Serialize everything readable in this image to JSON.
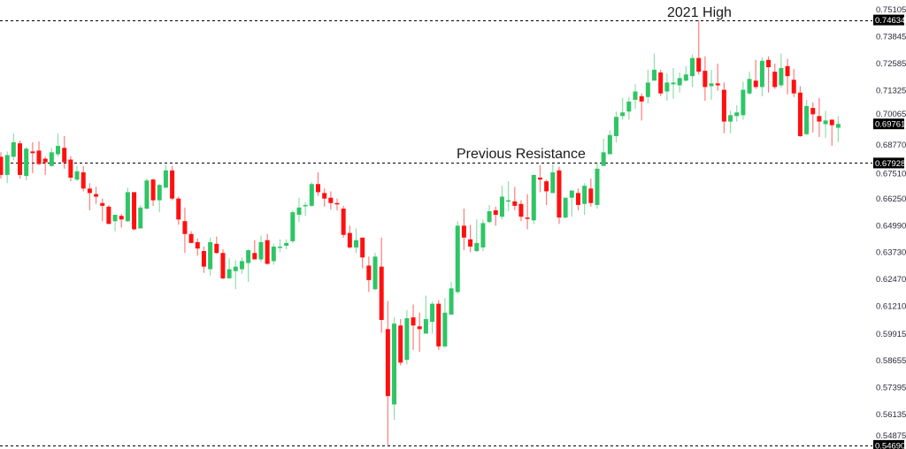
{
  "chart_data": {
    "type": "candlestick",
    "title": "",
    "xlabel": "",
    "ylabel": "",
    "ylim": [
      0.5452,
      0.7557
    ],
    "grid": false,
    "colors": {
      "up": "#2fc565",
      "down": "#ff1010",
      "level": "#000000",
      "label_bg": "#000000"
    },
    "y_ticks": [
      "0.75105",
      "0.73845",
      "0.72585",
      "0.71325",
      "0.70065",
      "0.68770",
      "0.67510",
      "0.66250",
      "0.64990",
      "0.63730",
      "0.62470",
      "0.61210",
      "0.59915",
      "0.58655",
      "0.57395",
      "0.56135",
      "0.54875"
    ],
    "levels": [
      {
        "price": 0.74634,
        "label": "0.74634",
        "annotation": "2021 High"
      },
      {
        "price": 0.67928,
        "label": "0.67928",
        "annotation": "Previous Resistance"
      },
      {
        "price": 0.5469,
        "label": "0.54690",
        "annotation": ""
      }
    ],
    "current_price": {
      "price": 0.69761,
      "label": "0.69761"
    },
    "ohlc_fields": [
      "open",
      "high",
      "low",
      "close"
    ],
    "ohlc": [
      [
        0.6822,
        0.6843,
        0.672,
        0.6737
      ],
      [
        0.6737,
        0.6847,
        0.6698,
        0.683
      ],
      [
        0.6822,
        0.6932,
        0.6805,
        0.689
      ],
      [
        0.6885,
        0.6898,
        0.672,
        0.6737
      ],
      [
        0.6732,
        0.6868,
        0.6711,
        0.686
      ],
      [
        0.6847,
        0.689,
        0.6745,
        0.6839
      ],
      [
        0.6851,
        0.6894,
        0.6783,
        0.6788
      ],
      [
        0.6813,
        0.6822,
        0.6737,
        0.6796
      ],
      [
        0.6779,
        0.6864,
        0.6775,
        0.6843
      ],
      [
        0.6834,
        0.6932,
        0.6822,
        0.6873
      ],
      [
        0.6864,
        0.6919,
        0.6766,
        0.6796
      ],
      [
        0.6809,
        0.6826,
        0.6707,
        0.6724
      ],
      [
        0.6715,
        0.6779,
        0.6707,
        0.6754
      ],
      [
        0.6749,
        0.6779,
        0.666,
        0.6673
      ],
      [
        0.6673,
        0.6698,
        0.6571,
        0.6652
      ],
      [
        0.6647,
        0.6681,
        0.6601,
        0.6635
      ],
      [
        0.6605,
        0.6626,
        0.652,
        0.6592
      ],
      [
        0.6588,
        0.6596,
        0.6507,
        0.6507
      ],
      [
        0.652,
        0.655,
        0.6473,
        0.655
      ],
      [
        0.6545,
        0.6554,
        0.649,
        0.6528
      ],
      [
        0.652,
        0.6677,
        0.6516,
        0.6656
      ],
      [
        0.6656,
        0.6656,
        0.6477,
        0.6482
      ],
      [
        0.6486,
        0.6596,
        0.6486,
        0.6584
      ],
      [
        0.6579,
        0.672,
        0.6575,
        0.6711
      ],
      [
        0.6715,
        0.672,
        0.6592,
        0.6618
      ],
      [
        0.6618,
        0.6694,
        0.6562,
        0.669
      ],
      [
        0.6677,
        0.6783,
        0.6677,
        0.6758
      ],
      [
        0.6758,
        0.6779,
        0.6618,
        0.6626
      ],
      [
        0.6626,
        0.6635,
        0.6503,
        0.6528
      ],
      [
        0.652,
        0.6584,
        0.6371,
        0.646
      ],
      [
        0.646,
        0.6473,
        0.6418,
        0.6418
      ],
      [
        0.6422,
        0.6439,
        0.6358,
        0.6392
      ],
      [
        0.638,
        0.6401,
        0.6278,
        0.6307
      ],
      [
        0.6295,
        0.6443,
        0.6265,
        0.6422
      ],
      [
        0.6414,
        0.6448,
        0.6367,
        0.6371
      ],
      [
        0.6371,
        0.6388,
        0.6248,
        0.6252
      ],
      [
        0.6252,
        0.6346,
        0.6252,
        0.6295
      ],
      [
        0.6286,
        0.6337,
        0.6201,
        0.6307
      ],
      [
        0.6295,
        0.635,
        0.6273,
        0.6333
      ],
      [
        0.6324,
        0.6388,
        0.6235,
        0.6384
      ],
      [
        0.6371,
        0.6431,
        0.6341,
        0.6341
      ],
      [
        0.6341,
        0.6452,
        0.6329,
        0.6422
      ],
      [
        0.6431,
        0.646,
        0.6316,
        0.632
      ],
      [
        0.6333,
        0.6414,
        0.6316,
        0.6401
      ],
      [
        0.6397,
        0.6435,
        0.6375,
        0.6401
      ],
      [
        0.6405,
        0.6435,
        0.6388,
        0.6418
      ],
      [
        0.6426,
        0.6571,
        0.6418,
        0.6562
      ],
      [
        0.655,
        0.663,
        0.6516,
        0.6584
      ],
      [
        0.6592,
        0.6609,
        0.6545,
        0.6596
      ],
      [
        0.6592,
        0.6703,
        0.6588,
        0.6694
      ],
      [
        0.6694,
        0.6749,
        0.6639,
        0.6656
      ],
      [
        0.6652,
        0.6673,
        0.6588,
        0.6626
      ],
      [
        0.663,
        0.666,
        0.6575,
        0.6605
      ],
      [
        0.6605,
        0.6626,
        0.6571,
        0.6601
      ],
      [
        0.6579,
        0.6592,
        0.6443,
        0.6456
      ],
      [
        0.6465,
        0.6499,
        0.6392,
        0.6397
      ],
      [
        0.6397,
        0.6486,
        0.6371,
        0.6431
      ],
      [
        0.6443,
        0.6443,
        0.6299,
        0.635
      ],
      [
        0.6312,
        0.6354,
        0.6188,
        0.6244
      ],
      [
        0.6201,
        0.6371,
        0.6197,
        0.6354
      ],
      [
        0.6307,
        0.6443,
        0.5997,
        0.6057
      ],
      [
        0.6014,
        0.6146,
        0.547,
        0.57
      ],
      [
        0.5661,
        0.6069,
        0.5589,
        0.604
      ],
      [
        0.6031,
        0.6061,
        0.5844,
        0.5857
      ],
      [
        0.587,
        0.6103,
        0.5848,
        0.6065
      ],
      [
        0.6069,
        0.6129,
        0.5916,
        0.6031
      ],
      [
        0.6027,
        0.6091,
        0.5908,
        0.6014
      ],
      [
        0.5993,
        0.6171,
        0.5993,
        0.6061
      ],
      [
        0.6048,
        0.6142,
        0.5993,
        0.6133
      ],
      [
        0.6133,
        0.615,
        0.5916,
        0.5933
      ],
      [
        0.5933,
        0.6159,
        0.5925,
        0.6091
      ],
      [
        0.6082,
        0.6235,
        0.6082,
        0.6205
      ],
      [
        0.6188,
        0.652,
        0.618,
        0.6499
      ],
      [
        0.6499,
        0.6579,
        0.6384,
        0.6443
      ],
      [
        0.6435,
        0.6503,
        0.6375,
        0.6401
      ],
      [
        0.638,
        0.6528,
        0.6375,
        0.6418
      ],
      [
        0.6397,
        0.6528,
        0.638,
        0.6511
      ],
      [
        0.6516,
        0.6596,
        0.6511,
        0.6567
      ],
      [
        0.6571,
        0.6588,
        0.6499,
        0.655
      ],
      [
        0.6541,
        0.6686,
        0.6528,
        0.6635
      ],
      [
        0.6613,
        0.6707,
        0.6567,
        0.6618
      ],
      [
        0.6613,
        0.6681,
        0.6571,
        0.6592
      ],
      [
        0.6601,
        0.6618,
        0.652,
        0.6541
      ],
      [
        0.6537,
        0.6647,
        0.6482,
        0.6533
      ],
      [
        0.6524,
        0.6737,
        0.6507,
        0.6737
      ],
      [
        0.6724,
        0.6783,
        0.6656,
        0.6715
      ],
      [
        0.6707,
        0.6715,
        0.6596,
        0.666
      ],
      [
        0.6652,
        0.6788,
        0.6652,
        0.6749
      ],
      [
        0.6758,
        0.6775,
        0.6507,
        0.6537
      ],
      [
        0.6537,
        0.663,
        0.6533,
        0.663
      ],
      [
        0.663,
        0.6664,
        0.6541,
        0.6664
      ],
      [
        0.6652,
        0.6673,
        0.6571,
        0.6596
      ],
      [
        0.6601,
        0.6698,
        0.655,
        0.6686
      ],
      [
        0.6673,
        0.672,
        0.6588,
        0.6605
      ],
      [
        0.6596,
        0.6792,
        0.6579,
        0.6766
      ],
      [
        0.6779,
        0.6907,
        0.6779,
        0.6843
      ],
      [
        0.6834,
        0.6945,
        0.6834,
        0.6924
      ],
      [
        0.6919,
        0.7034,
        0.689,
        0.7009
      ],
      [
        0.7013,
        0.7098,
        0.6996,
        0.703
      ],
      [
        0.7034,
        0.7102,
        0.6996,
        0.7081
      ],
      [
        0.7089,
        0.7162,
        0.7047,
        0.7128
      ],
      [
        0.7106,
        0.7119,
        0.6992,
        0.7081
      ],
      [
        0.7102,
        0.723,
        0.7072,
        0.717
      ],
      [
        0.7179,
        0.7306,
        0.7179,
        0.723
      ],
      [
        0.7217,
        0.723,
        0.7106,
        0.7119
      ],
      [
        0.7128,
        0.7213,
        0.7085,
        0.717
      ],
      [
        0.7162,
        0.7238,
        0.7094,
        0.717
      ],
      [
        0.7157,
        0.7217,
        0.7123,
        0.7191
      ],
      [
        0.7179,
        0.7247,
        0.7174,
        0.7208
      ],
      [
        0.72,
        0.7302,
        0.7149,
        0.7285
      ],
      [
        0.7285,
        0.7463,
        0.7208,
        0.7221
      ],
      [
        0.7225,
        0.7293,
        0.7085,
        0.7149
      ],
      [
        0.7153,
        0.723,
        0.7089,
        0.7166
      ],
      [
        0.7166,
        0.7259,
        0.7132,
        0.7157
      ],
      [
        0.7136,
        0.717,
        0.6932,
        0.6987
      ],
      [
        0.6987,
        0.7038,
        0.6932,
        0.7017
      ],
      [
        0.7013,
        0.7064,
        0.6987,
        0.703
      ],
      [
        0.7017,
        0.7174,
        0.6996,
        0.7136
      ],
      [
        0.7119,
        0.7221,
        0.7111,
        0.7187
      ],
      [
        0.7179,
        0.7276,
        0.714,
        0.7149
      ],
      [
        0.7149,
        0.7289,
        0.7106,
        0.7272
      ],
      [
        0.7276,
        0.7293,
        0.7123,
        0.7242
      ],
      [
        0.7221,
        0.7259,
        0.714,
        0.7149
      ],
      [
        0.7157,
        0.7306,
        0.7145,
        0.7238
      ],
      [
        0.7247,
        0.7281,
        0.7115,
        0.72
      ],
      [
        0.7183,
        0.7234,
        0.7102,
        0.7119
      ],
      [
        0.7123,
        0.7153,
        0.6915,
        0.6919
      ],
      [
        0.6928,
        0.7089,
        0.6924,
        0.706
      ],
      [
        0.7051,
        0.7077,
        0.6936,
        0.7021
      ],
      [
        0.7013,
        0.7098,
        0.6915,
        0.6987
      ],
      [
        0.6975,
        0.7038,
        0.6911,
        0.6992
      ],
      [
        0.6996,
        0.6996,
        0.6873,
        0.697
      ],
      [
        0.6958,
        0.7013,
        0.689,
        0.6976
      ]
    ]
  }
}
